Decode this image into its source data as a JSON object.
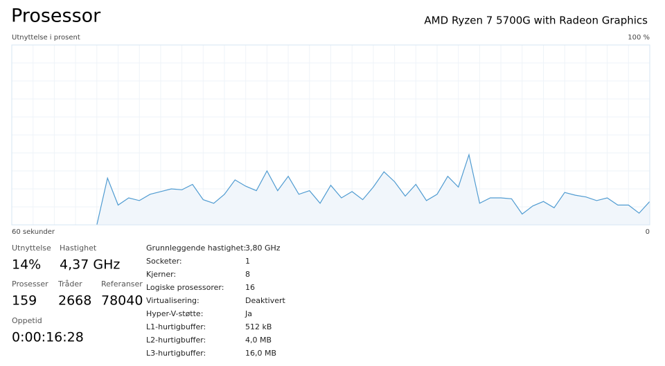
{
  "header": {
    "title": "Prosessor",
    "cpu_name": "AMD Ryzen 7 5700G with Radeon Graphics"
  },
  "chart_data": {
    "type": "line",
    "ylabel": "Utnyttelse i prosent",
    "x": [
      52,
      51,
      50,
      49,
      48,
      47,
      46,
      45,
      44,
      43,
      42,
      41,
      40,
      39,
      38,
      37,
      36,
      35,
      34,
      33,
      32,
      31,
      30,
      29,
      28,
      27,
      26,
      25,
      24,
      23,
      22,
      21,
      20,
      19,
      18,
      17,
      16,
      15,
      14,
      13,
      12,
      11,
      10,
      9,
      8,
      7,
      6,
      5,
      4,
      3,
      2,
      1,
      0
    ],
    "series": [
      {
        "color": "#4f9bd1",
        "values": [
          0,
          26,
          11,
          15,
          13.5,
          17,
          18.5,
          20,
          19.5,
          22.5,
          14,
          12,
          17,
          25,
          21.5,
          19,
          30,
          19,
          27,
          17,
          19,
          12,
          22,
          15,
          18.5,
          14,
          21,
          29.5,
          24,
          16,
          22.5,
          13.5,
          17,
          27,
          21,
          39,
          12,
          15,
          15,
          14.5,
          6,
          10.5,
          13,
          9.5,
          18,
          16.5,
          15.5,
          13.5,
          15,
          11,
          11,
          6.5,
          13
        ]
      }
    ],
    "xlim": [
      60,
      0
    ],
    "xticks": [
      {
        "value": 60,
        "label": "60 sekunder"
      }
    ],
    "ylim": [
      0,
      100
    ],
    "yticks": [
      {
        "value": 100,
        "label": "100 %"
      },
      0
    ],
    "grid": true
  },
  "stats": [
    {
      "label": "Utnyttelse",
      "value": "14%"
    },
    {
      "label": "Hastighet",
      "value": "4,37 GHz"
    },
    {
      "label": "Prosesser",
      "value": "159"
    },
    {
      "label": "Tråder",
      "value": "2668"
    },
    {
      "label": "Referanser",
      "value": "78040"
    },
    {
      "label": "Oppetid",
      "value": "0:00:16:28"
    }
  ],
  "details": [
    {
      "label": "Grunnleggende hastighet:",
      "value": "3,80 GHz"
    },
    {
      "label": "Socketer:",
      "value": "1"
    },
    {
      "label": "Kjerner:",
      "value": "8"
    },
    {
      "label": "Logiske prosessorer:",
      "value": "16"
    },
    {
      "label": "Virtualisering:",
      "value": "Deaktivert"
    },
    {
      "label": "Hyper-V-støtte:",
      "value": "Ja"
    },
    {
      "label": "L1-hurtigbuffer:",
      "value": "512 kB"
    },
    {
      "label": "L2-hurtigbuffer:",
      "value": "4,0 MB"
    },
    {
      "label": "L3-hurtigbuffer:",
      "value": "16,0 MB"
    }
  ]
}
